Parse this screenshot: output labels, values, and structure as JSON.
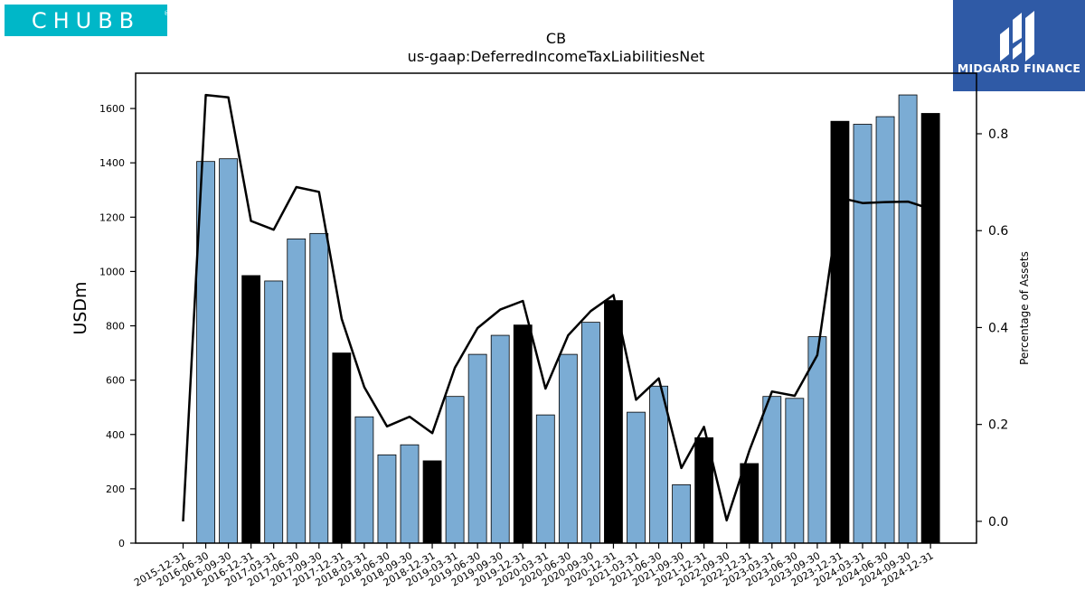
{
  "brand": {
    "left_logo_text": "CHUBB",
    "right_logo_text": "MIDGARD FINANCE",
    "left_logo_color": "#00b7c8",
    "right_logo_color": "#2f5aa6"
  },
  "chart_data": {
    "type": "bar",
    "title": "CB",
    "subtitle": "us-gaap:DeferredIncomeTaxLiabilitiesNet",
    "ylabel": "USDm",
    "y2label": "Percentage of Assets",
    "ylim": [
      0,
      1730
    ],
    "y2lim": [
      -0.045,
      0.925
    ],
    "yticks": [
      0,
      200,
      400,
      600,
      800,
      1000,
      1200,
      1400,
      1600
    ],
    "y2ticks": [
      "0.0",
      "0.2",
      "0.4",
      "0.6",
      "0.8"
    ],
    "y2tick_values": [
      0.0,
      0.2,
      0.4,
      0.6,
      0.8
    ],
    "grid": false,
    "colors": {
      "bar": "#7bacd4",
      "highlight_bar": "#000000",
      "line": "#000000"
    },
    "categories": [
      "2015-12-31",
      "2016-06-30",
      "2016-09-30",
      "2016-12-31",
      "2017-03-31",
      "2017-06-30",
      "2017-09-30",
      "2017-12-31",
      "2018-03-31",
      "2018-06-30",
      "2018-09-30",
      "2018-12-31",
      "2019-03-31",
      "2019-06-30",
      "2019-09-30",
      "2019-12-31",
      "2020-03-31",
      "2020-06-30",
      "2020-09-30",
      "2020-12-31",
      "2021-03-31",
      "2021-06-30",
      "2021-09-30",
      "2021-12-31",
      "2022-09-30",
      "2022-12-31",
      "2023-03-31",
      "2023-06-30",
      "2023-09-30",
      "2023-12-31",
      "2024-03-31",
      "2024-06-30",
      "2024-09-30",
      "2024-12-31"
    ],
    "series": [
      {
        "kind": "bar",
        "values": [
          0,
          1405,
          1415,
          985,
          965,
          1120,
          1140,
          700,
          465,
          325,
          362,
          303,
          540,
          695,
          765,
          803,
          472,
          695,
          813,
          893,
          482,
          578,
          215,
          388,
          0,
          293,
          540,
          533,
          760,
          1553,
          1542,
          1570,
          1650,
          1582
        ],
        "highlight": [
          false,
          false,
          false,
          true,
          false,
          false,
          false,
          true,
          false,
          false,
          false,
          true,
          false,
          false,
          false,
          true,
          false,
          false,
          false,
          true,
          false,
          false,
          false,
          true,
          false,
          true,
          false,
          false,
          false,
          true,
          false,
          false,
          false,
          true
        ]
      },
      {
        "kind": "line",
        "axis": "right",
        "values": [
          0.0,
          0.88,
          0.875,
          0.62,
          0.602,
          0.69,
          0.68,
          0.418,
          0.277,
          0.196,
          0.216,
          0.182,
          0.317,
          0.399,
          0.437,
          0.455,
          0.274,
          0.384,
          0.434,
          0.467,
          0.251,
          0.295,
          0.11,
          0.195,
          0.002,
          0.146,
          0.268,
          0.259,
          0.343,
          0.668,
          0.657,
          0.659,
          0.66,
          0.645
        ]
      }
    ]
  }
}
